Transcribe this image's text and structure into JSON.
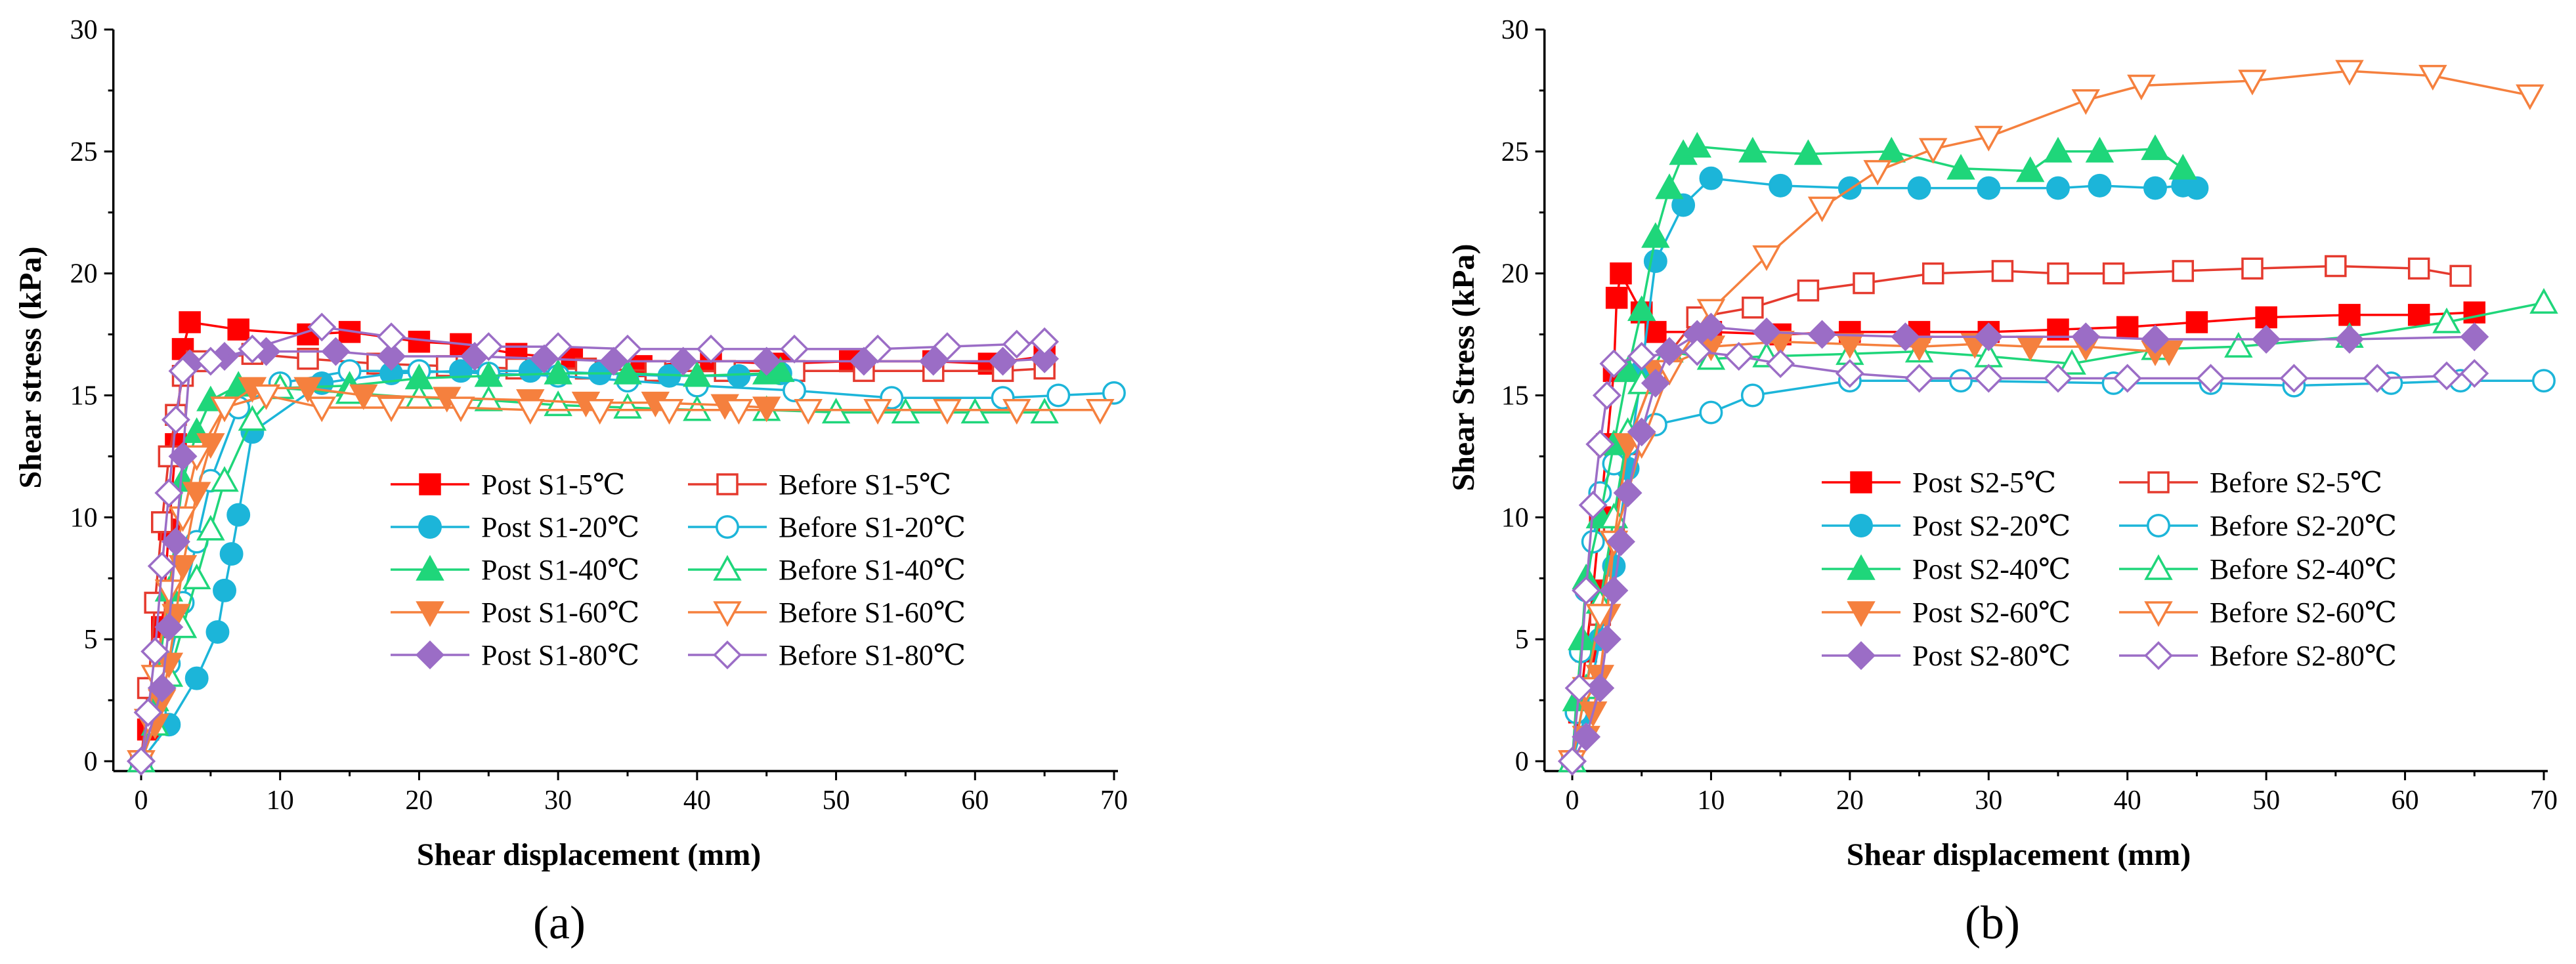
{
  "figure": {
    "panels": [
      "(a)",
      "(b)"
    ]
  },
  "chart_data": [
    {
      "type": "line",
      "panel_label": "(a)",
      "xlabel": "Shear displacement (mm)",
      "ylabel": "Shear stress (kPa)",
      "xlim": [
        0,
        70
      ],
      "ylim": [
        0,
        30
      ],
      "xticks": [
        0,
        10,
        20,
        30,
        40,
        50,
        60,
        70
      ],
      "yticks": [
        0,
        5,
        10,
        15,
        20,
        25,
        30
      ],
      "grid": false,
      "legend_position": "center-right",
      "series": [
        {
          "name": "Post S1-5℃",
          "color": "#ff0000",
          "marker": "square",
          "filled": true,
          "x": [
            0,
            0.5,
            1,
            1.5,
            2,
            2.5,
            3,
            3.5,
            7,
            12,
            15,
            20,
            23,
            27,
            31,
            36,
            41,
            46,
            51,
            57,
            61,
            65
          ],
          "y": [
            0,
            1.3,
            3,
            5.5,
            9.5,
            13,
            16.9,
            18,
            17.7,
            17.5,
            17.6,
            17.2,
            17.1,
            16.7,
            16.5,
            16.2,
            16.4,
            16.3,
            16.4,
            16.4,
            16.3,
            16.6
          ]
        },
        {
          "name": "Before S1-5℃",
          "color": "#e53a2e",
          "marker": "square",
          "filled": false,
          "x": [
            0,
            0.5,
            1,
            1.5,
            2,
            2.5,
            3,
            4,
            8,
            12,
            17,
            22,
            27,
            32,
            37,
            42,
            47,
            52,
            57,
            62,
            65
          ],
          "y": [
            0,
            3,
            6.5,
            9.8,
            12.5,
            14.2,
            15.8,
            16.4,
            16.7,
            16.5,
            16.3,
            16.2,
            16.1,
            16.1,
            16,
            16,
            16,
            16,
            16,
            16,
            16.1
          ]
        },
        {
          "name": "Post S1-20℃",
          "color": "#1cb5d9",
          "marker": "circle",
          "filled": true,
          "x": [
            0,
            2,
            4,
            5.5,
            6,
            6.5,
            7,
            8,
            13,
            18,
            23,
            28,
            33,
            38,
            43,
            46
          ],
          "y": [
            0,
            1.5,
            3.4,
            5.3,
            7,
            8.5,
            10.1,
            13.5,
            15.5,
            15.9,
            16,
            16,
            15.9,
            15.8,
            15.8,
            15.9
          ]
        },
        {
          "name": "Before S1-20℃",
          "color": "#1cb5d9",
          "marker": "circle",
          "filled": false,
          "x": [
            0,
            1,
            2,
            3,
            4,
            5,
            7,
            10,
            15,
            20,
            25,
            30,
            35,
            40,
            47,
            54,
            62,
            66,
            70
          ],
          "y": [
            0,
            2,
            4,
            6.5,
            9,
            11.5,
            14.5,
            15.5,
            16,
            16,
            15.9,
            15.8,
            15.6,
            15.4,
            15.2,
            14.9,
            14.9,
            15,
            15.1
          ]
        },
        {
          "name": "Post S1-40℃",
          "color": "#1fd67a",
          "marker": "triangle-up",
          "filled": true,
          "x": [
            0,
            1,
            2,
            3,
            4,
            5,
            7,
            10,
            15,
            20,
            25,
            30,
            35,
            40,
            45,
            46
          ],
          "y": [
            0,
            2.5,
            7,
            11.5,
            13.5,
            14.8,
            15.4,
            15.3,
            15.4,
            15.7,
            15.8,
            15.9,
            15.9,
            15.8,
            15.9,
            16
          ]
        },
        {
          "name": "Before S1-40℃",
          "color": "#1fd67a",
          "marker": "triangle-up",
          "filled": false,
          "x": [
            0,
            1,
            2,
            3,
            4,
            5,
            6,
            8,
            10,
            15,
            20,
            25,
            30,
            35,
            40,
            45,
            50,
            55,
            60,
            65
          ],
          "y": [
            0,
            1.5,
            3.5,
            5.5,
            7.5,
            9.5,
            11.5,
            14,
            15.3,
            15.1,
            14.9,
            14.8,
            14.6,
            14.5,
            14.4,
            14.4,
            14.3,
            14.3,
            14.3,
            14.3
          ]
        },
        {
          "name": "Post S1-60℃",
          "color": "#f5803e",
          "marker": "triangle-down",
          "filled": true,
          "x": [
            0,
            1,
            1.5,
            2,
            2.5,
            3,
            4,
            5,
            6,
            8,
            12,
            16,
            22,
            28,
            32,
            37,
            42,
            45
          ],
          "y": [
            0,
            1.5,
            2.5,
            4,
            6,
            8,
            11,
            13,
            14.5,
            15.3,
            15.3,
            15,
            14.9,
            14.8,
            14.7,
            14.7,
            14.6,
            14.5
          ]
        },
        {
          "name": "Before S1-60℃",
          "color": "#f5803e",
          "marker": "triangle-down",
          "filled": false,
          "x": [
            0,
            0.5,
            1,
            2,
            3,
            4,
            6,
            9,
            13,
            18,
            23,
            28,
            33,
            38,
            43,
            48,
            53,
            58,
            63,
            69
          ],
          "y": [
            0,
            1.7,
            3.5,
            7,
            10,
            12.5,
            14.5,
            15,
            14.5,
            14.5,
            14.5,
            14.4,
            14.4,
            14.4,
            14.4,
            14.4,
            14.4,
            14.4,
            14.4,
            14.4
          ]
        },
        {
          "name": "Post S1-80℃",
          "color": "#9b6dc6",
          "marker": "diamond",
          "filled": true,
          "x": [
            0,
            1.5,
            2,
            2.5,
            3,
            3.5,
            6,
            9,
            14,
            18,
            24,
            29,
            34,
            39,
            45,
            52,
            57,
            62,
            65
          ],
          "y": [
            0,
            3,
            5.5,
            9,
            12.5,
            16.3,
            16.6,
            16.8,
            16.8,
            16.6,
            16.6,
            16.5,
            16.4,
            16.4,
            16.4,
            16.4,
            16.4,
            16.4,
            16.5
          ]
        },
        {
          "name": "Before S1-80℃",
          "color": "#9b6dc6",
          "marker": "diamond",
          "filled": false,
          "x": [
            0,
            0.5,
            1,
            1.5,
            2,
            2.5,
            3,
            5,
            8,
            13,
            18,
            25,
            30,
            35,
            41,
            47,
            53,
            58,
            63,
            65
          ],
          "y": [
            0,
            2,
            4.5,
            8,
            11,
            14,
            16,
            16.4,
            16.9,
            17.8,
            17.4,
            17,
            17,
            16.9,
            16.9,
            16.9,
            16.9,
            17,
            17.1,
            17.2
          ]
        }
      ]
    },
    {
      "type": "line",
      "panel_label": "(b)",
      "xlabel": "Shear displacement (mm)",
      "ylabel": "Shear Stress (kPa)",
      "xlim": [
        0,
        70
      ],
      "ylim": [
        0,
        30
      ],
      "xticks": [
        0,
        10,
        20,
        30,
        40,
        50,
        60,
        70
      ],
      "yticks": [
        0,
        5,
        10,
        15,
        20,
        25,
        30
      ],
      "grid": false,
      "legend_position": "center-right",
      "series": [
        {
          "name": "Post S2-5℃",
          "color": "#ff0000",
          "marker": "square",
          "filled": true,
          "x": [
            0,
            0.5,
            1,
            1.5,
            2,
            2.5,
            3,
            3.2,
            3.5,
            5,
            6,
            10,
            15,
            20,
            25,
            30,
            35,
            40,
            45,
            50,
            56,
            61,
            65
          ],
          "y": [
            0,
            2,
            4.5,
            7,
            10,
            13,
            16,
            19,
            20,
            18.4,
            17.6,
            17.6,
            17.5,
            17.6,
            17.6,
            17.6,
            17.7,
            17.8,
            18,
            18.2,
            18.3,
            18.3,
            18.4
          ]
        },
        {
          "name": "Before S2-5℃",
          "color": "#e53a2e",
          "marker": "square",
          "filled": false,
          "x": [
            0,
            1,
            2,
            3,
            4,
            6,
            9,
            13,
            17,
            21,
            26,
            31,
            35,
            39,
            44,
            49,
            55,
            61,
            64
          ],
          "y": [
            0,
            3,
            6,
            9.5,
            13,
            16,
            18.2,
            18.6,
            19.3,
            19.6,
            20,
            20.1,
            20,
            20,
            20.1,
            20.2,
            20.3,
            20.2,
            19.9
          ]
        },
        {
          "name": "Post S2-20℃",
          "color": "#1cb5d9",
          "marker": "circle",
          "filled": true,
          "x": [
            0,
            1,
            2,
            3,
            4,
            5,
            6,
            8,
            10,
            15,
            20,
            25,
            30,
            35,
            38,
            42,
            44,
            45
          ],
          "y": [
            0,
            2,
            5,
            8,
            12,
            16,
            20.5,
            22.8,
            23.9,
            23.6,
            23.5,
            23.5,
            23.5,
            23.5,
            23.6,
            23.5,
            23.6,
            23.5
          ]
        },
        {
          "name": "Before S2-20℃",
          "color": "#1cb5d9",
          "marker": "circle",
          "filled": false,
          "x": [
            0,
            0.3,
            0.6,
            1,
            1.5,
            2,
            3,
            4,
            6,
            10,
            13,
            20,
            28,
            39,
            46,
            52,
            59,
            64,
            70
          ],
          "y": [
            0,
            2,
            4.5,
            7,
            9,
            11,
            12.2,
            13,
            13.8,
            14.3,
            15,
            15.6,
            15.6,
            15.5,
            15.5,
            15.4,
            15.5,
            15.6,
            15.6
          ]
        },
        {
          "name": "Post S2-40℃",
          "color": "#1fd67a",
          "marker": "triangle-up",
          "filled": true,
          "x": [
            0,
            0.3,
            0.7,
            1,
            2,
            3,
            4,
            5,
            6,
            7,
            8,
            9,
            13,
            17,
            23,
            28,
            33,
            35,
            38,
            42,
            44
          ],
          "y": [
            0,
            2.5,
            5,
            7.5,
            10,
            13,
            16,
            18.5,
            21.5,
            23.5,
            24.9,
            25.2,
            25,
            24.9,
            25,
            24.3,
            24.2,
            25,
            25,
            25.1,
            24.3
          ]
        },
        {
          "name": "Before S2-40℃",
          "color": "#1fd67a",
          "marker": "triangle-up",
          "filled": false,
          "x": [
            0,
            1,
            2,
            3,
            4,
            5,
            7,
            10,
            14,
            20,
            25,
            30,
            36,
            42,
            48,
            56,
            63,
            70
          ],
          "y": [
            0,
            3,
            6.5,
            10,
            13.5,
            15.5,
            16.8,
            16.5,
            16.6,
            16.7,
            16.8,
            16.6,
            16.3,
            16.9,
            17,
            17.4,
            18,
            18.8
          ]
        },
        {
          "name": "Post S2-60℃",
          "color": "#f5803e",
          "marker": "triangle-down",
          "filled": true,
          "x": [
            0,
            1,
            1.5,
            2,
            2.5,
            3,
            4,
            6,
            10,
            15,
            20,
            25,
            29,
            33,
            37,
            42,
            43
          ],
          "y": [
            0,
            1,
            2,
            3.5,
            6,
            9,
            13,
            16,
            17,
            17.2,
            17.1,
            17,
            17.1,
            17,
            17,
            16.8,
            16.8
          ]
        },
        {
          "name": "Before S2-60℃",
          "color": "#f5803e",
          "marker": "triangle-down",
          "filled": false,
          "x": [
            0,
            1,
            2,
            3,
            5,
            7,
            10,
            14,
            18,
            22,
            26,
            30,
            37,
            41,
            49,
            56,
            62,
            69
          ],
          "y": [
            0,
            3,
            6,
            9,
            13,
            16,
            18.5,
            20.7,
            22.7,
            24.2,
            25.1,
            25.6,
            27.1,
            27.7,
            27.9,
            28.3,
            28.1,
            27.3
          ]
        },
        {
          "name": "Post S2-80℃",
          "color": "#9b6dc6",
          "marker": "diamond",
          "filled": true,
          "x": [
            0,
            1,
            2,
            2.5,
            3,
            3.5,
            4,
            5,
            6,
            7,
            9,
            10,
            14,
            18,
            24,
            30,
            37,
            42,
            50,
            56,
            65
          ],
          "y": [
            0,
            1,
            3,
            5,
            7,
            9,
            11,
            13.5,
            15.5,
            16.8,
            17.5,
            17.8,
            17.6,
            17.5,
            17.4,
            17.4,
            17.4,
            17.3,
            17.3,
            17.3,
            17.4
          ]
        },
        {
          "name": "Before S2-80℃",
          "color": "#9b6dc6",
          "marker": "diamond",
          "filled": false,
          "x": [
            0,
            0.5,
            1,
            1.5,
            2,
            2.5,
            3,
            5,
            9,
            12,
            15,
            20,
            25,
            30,
            35,
            40,
            46,
            52,
            58,
            63,
            65
          ],
          "y": [
            0,
            3,
            7,
            10.5,
            13,
            15,
            16.3,
            16.6,
            16.8,
            16.6,
            16.3,
            15.9,
            15.7,
            15.7,
            15.7,
            15.7,
            15.7,
            15.7,
            15.7,
            15.8,
            15.9
          ]
        }
      ]
    }
  ]
}
